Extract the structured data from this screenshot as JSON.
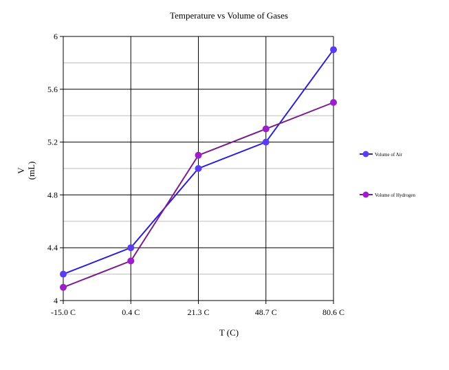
{
  "chart_data": {
    "type": "line",
    "title": "Temperature vs Volume of Gases",
    "xlabel": "T (C)",
    "ylabel_line1": "V",
    "ylabel_line2": "(mL)",
    "categories": [
      "-15.0 C",
      "0.4 C",
      "21.3 C",
      "48.7 C",
      "80.6 C"
    ],
    "ylim": [
      4,
      6
    ],
    "yticks": [
      "4",
      "4.4",
      "4.8",
      "5.2",
      "5.6",
      "6"
    ],
    "grid": true,
    "legend_position": "right",
    "series": [
      {
        "name": "Volume of Air",
        "values": [
          4.2,
          4.4,
          5.0,
          5.2,
          5.9
        ],
        "color": "#2b1fd6",
        "marker_color": "#5a3cf0"
      },
      {
        "name": "Volume of Hydrogen",
        "values": [
          4.1,
          4.3,
          5.1,
          5.3,
          5.5
        ],
        "color": "#7a1d8c",
        "marker_color": "#9b1ec8"
      }
    ]
  }
}
